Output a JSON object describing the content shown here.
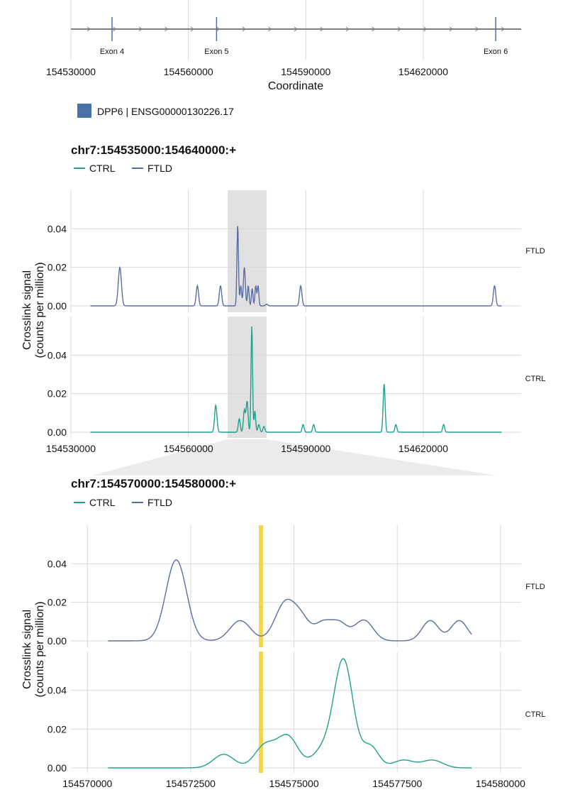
{
  "colors": {
    "ctrl": "#21a08a",
    "ftld": "#5a6ea3",
    "gene": "#4a72a8",
    "highlight": "#f2d64e",
    "grid": "#d9d9d9",
    "shade": "#d9d9d9",
    "zoom": "#ebebeb",
    "axis": "#808080"
  },
  "gene_track": {
    "x_ticks": [
      154530000,
      154560000,
      154590000,
      154620000
    ],
    "x_tick_labels": [
      "154530000",
      "154560000",
      "154590000",
      "154620000"
    ],
    "xlabel": "Coordinate",
    "exons": [
      {
        "label": "Exon 4",
        "pos": 154540500
      },
      {
        "label": "Exon 5",
        "pos": 154567200
      },
      {
        "label": "Exon 6",
        "pos": 154638500
      }
    ],
    "legend_label": "DPP6 | ENSG00000130226.17"
  },
  "chart_data": [
    {
      "type": "line",
      "title": "chr7:154535000:154640000:+",
      "ylabel_line1": "Crosslink signal",
      "ylabel_line2": "(counts per million)",
      "xlim": [
        154530000,
        154645000
      ],
      "x_ticks": [
        154530000,
        154560000,
        154590000,
        154620000
      ],
      "x_tick_labels": [
        "154530000",
        "154560000",
        "154590000",
        "154620000"
      ],
      "ylim": [
        0,
        0.06
      ],
      "y_ticks": [
        0,
        0.02,
        0.04
      ],
      "y_tick_labels": [
        "0.00",
        "0.02",
        "0.04"
      ],
      "legend": [
        "CTRL",
        "FTLD"
      ],
      "shaded_region": [
        154570000,
        154580000
      ],
      "series": [
        {
          "name": "FTLD",
          "x_start": 154535000,
          "x_end": 154640000,
          "peaks": [
            [
              154542500,
              0.02,
              400
            ],
            [
              154562300,
              0.0105,
              300
            ],
            [
              154568200,
              0.0105,
              300
            ],
            [
              154572600,
              0.042,
              200
            ],
            [
              154573400,
              0.0105,
              200
            ],
            [
              154574300,
              0.02,
              250
            ],
            [
              154575300,
              0.0105,
              200
            ],
            [
              154576300,
              0.009,
              200
            ],
            [
              154577200,
              0.0105,
              200
            ],
            [
              154577800,
              0.0105,
              200
            ],
            [
              154580000,
              0.0009,
              300
            ],
            [
              154588700,
              0.0105,
              300
            ],
            [
              154638200,
              0.0105,
              300
            ]
          ]
        },
        {
          "name": "CTRL",
          "x_start": 154535000,
          "x_end": 154640000,
          "peaks": [
            [
              154567000,
              0.014,
              300
            ],
            [
              154573000,
              0.007,
              250
            ],
            [
              154574300,
              0.0115,
              250
            ],
            [
              154575000,
              0.016,
              250
            ],
            [
              154576200,
              0.055,
              200
            ],
            [
              154577000,
              0.011,
              200
            ],
            [
              154578000,
              0.004,
              250
            ],
            [
              154579300,
              0.003,
              250
            ],
            [
              154589300,
              0.004,
              250
            ],
            [
              154592000,
              0.004,
              250
            ],
            [
              154610000,
              0.025,
              250
            ],
            [
              154613000,
              0.004,
              250
            ],
            [
              154625200,
              0.004,
              250
            ]
          ]
        }
      ]
    },
    {
      "type": "line",
      "title": "chr7:154570000:154580000:+",
      "ylabel_line1": "Crosslink signal",
      "ylabel_line2": "(counts per million)",
      "xlim": [
        154569600,
        154580500
      ],
      "x_ticks": [
        154570000,
        154572500,
        154575000,
        154577500,
        154580000
      ],
      "x_tick_labels": [
        "154570000",
        "154572500",
        "154575000",
        "154577500",
        "154580000"
      ],
      "ylim": [
        0,
        0.06
      ],
      "y_ticks": [
        0,
        0.02,
        0.04
      ],
      "y_tick_labels": [
        "0.00",
        "0.02",
        "0.04"
      ],
      "legend": [
        "CTRL",
        "FTLD"
      ],
      "highlight_position": 154574200,
      "series": [
        {
          "name": "FTLD",
          "x_start": 154570500,
          "x_end": 154579300,
          "peaks": [
            [
              154572150,
              0.042,
              250
            ],
            [
              154573700,
              0.0105,
              250
            ],
            [
              154574800,
              0.02,
              250
            ],
            [
              154575200,
              0.009,
              200
            ],
            [
              154575700,
              0.009,
              200
            ],
            [
              154576100,
              0.009,
              200
            ],
            [
              154576500,
              0.0005,
              150
            ],
            [
              154576700,
              0.0105,
              220
            ],
            [
              154578300,
              0.0105,
              200
            ],
            [
              154579000,
              0.0105,
              200
            ]
          ]
        },
        {
          "name": "CTRL",
          "x_start": 154570500,
          "x_end": 154579300,
          "peaks": [
            [
              154573300,
              0.007,
              250
            ],
            [
              154574300,
              0.0115,
              250
            ],
            [
              154574850,
              0.016,
              250
            ],
            [
              154575700,
              0.009,
              250
            ],
            [
              154576200,
              0.055,
              230
            ],
            [
              154576850,
              0.011,
              200
            ],
            [
              154577650,
              0.004,
              250
            ],
            [
              154578350,
              0.004,
              250
            ]
          ]
        }
      ]
    }
  ]
}
